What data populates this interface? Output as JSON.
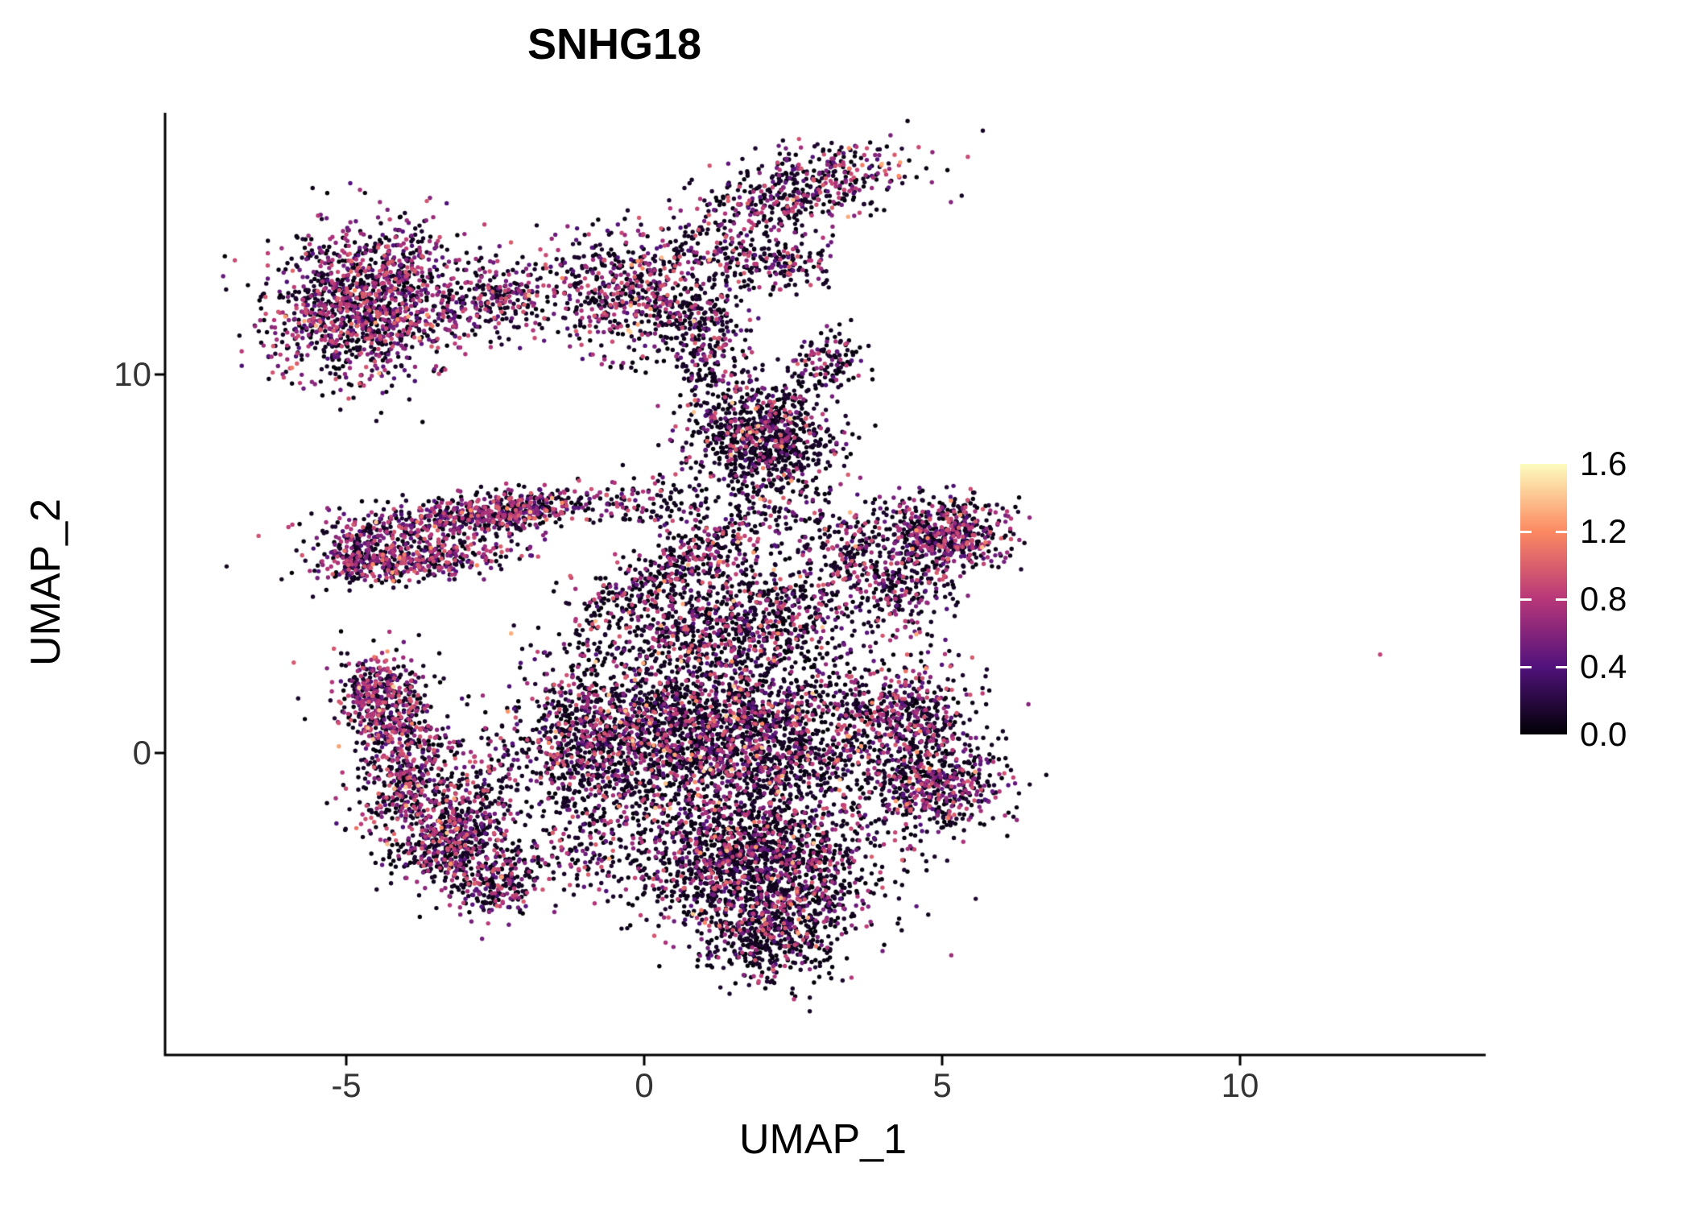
{
  "chart_data": {
    "type": "scatter",
    "title": "SNHG18",
    "xlabel": "UMAP_1",
    "ylabel": "UMAP_2",
    "xlim": [
      -8.0,
      14.1
    ],
    "ylim": [
      -8.0,
      16.9
    ],
    "grid": false,
    "legend_position": "right",
    "xticks": [
      {
        "value": -5,
        "label": "-5"
      },
      {
        "value": 0,
        "label": "0"
      },
      {
        "value": 5,
        "label": "5"
      },
      {
        "value": 10,
        "label": "10"
      }
    ],
    "yticks": [
      {
        "value": 10,
        "label": "10"
      },
      {
        "value": 0,
        "label": "0"
      }
    ],
    "colorbar": {
      "domain": [
        0.0,
        1.6
      ],
      "ticks": [
        {
          "value": 1.6,
          "label": "1.6"
        },
        {
          "value": 1.2,
          "label": "1.2"
        },
        {
          "value": 0.8,
          "label": "0.8"
        },
        {
          "value": 0.4,
          "label": "0.4"
        },
        {
          "value": 0.0,
          "label": "0.0"
        }
      ],
      "palette": "magma",
      "stops": [
        {
          "t": 0.0,
          "color": "#000004"
        },
        {
          "t": 0.25,
          "color": "#51127c"
        },
        {
          "t": 0.5,
          "color": "#b73779"
        },
        {
          "t": 0.75,
          "color": "#fc8961"
        },
        {
          "t": 1.0,
          "color": "#fcfdbf"
        }
      ]
    },
    "colors": {
      "background": "#ffffff",
      "axis": "#000000",
      "title": "#000000",
      "tick_label": "#333333"
    },
    "point_radius": 2.7,
    "seed": 42,
    "clusters": [
      {
        "name": "top-left-blob",
        "cx": -4.65,
        "cy": 11.9,
        "sx": 0.8,
        "sy": 1.0,
        "rot": -15,
        "n": 1400,
        "mid": 0.5,
        "hot": 0.02
      },
      {
        "name": "top-bridge",
        "cx": -2.45,
        "cy": 12.0,
        "sx": 0.5,
        "sy": 0.5,
        "rot": 0,
        "n": 220,
        "mid": 0.4,
        "hot": 0.01
      },
      {
        "name": "top-mid",
        "cx": -0.15,
        "cy": 12.1,
        "sx": 0.75,
        "sy": 0.85,
        "rot": 25,
        "n": 650,
        "mid": 0.4,
        "hot": 0.02
      },
      {
        "name": "top-mid-right-sparse",
        "cx": 1.3,
        "cy": 13.3,
        "sx": 0.45,
        "sy": 0.6,
        "rot": 0,
        "n": 100,
        "mid": 0.3,
        "hot": 0.0
      },
      {
        "name": "top-right-ridge",
        "cx": 2.6,
        "cy": 14.9,
        "sx": 1.0,
        "sy": 0.45,
        "rot": 25,
        "n": 480,
        "mid": 0.4,
        "hot": 0.03
      },
      {
        "name": "top-right-sub",
        "cx": 2.3,
        "cy": 13.0,
        "sx": 0.45,
        "sy": 0.35,
        "rot": 0,
        "n": 170,
        "mid": 0.35,
        "hot": 0.02
      },
      {
        "name": "upper-stream",
        "cx": 1.05,
        "cy": 10.8,
        "sx": 0.35,
        "sy": 0.9,
        "rot": 0,
        "n": 230,
        "mid": 0.3,
        "hot": 0.01
      },
      {
        "name": "dark-knot",
        "cx": 2.0,
        "cy": 8.3,
        "sx": 0.6,
        "sy": 0.75,
        "rot": 0,
        "n": 900,
        "mid": 0.22,
        "hot": 0.02
      },
      {
        "name": "knot-right-sparse",
        "cx": 3.1,
        "cy": 10.3,
        "sx": 0.3,
        "sy": 0.4,
        "rot": 0,
        "n": 120,
        "mid": 0.3,
        "hot": 0.0
      },
      {
        "name": "left-band-upper",
        "cx": -2.7,
        "cy": 6.3,
        "sx": 1.25,
        "sy": 0.28,
        "rot": 12,
        "n": 700,
        "mid": 0.45,
        "hot": 0.02
      },
      {
        "name": "left-band-lower",
        "cx": -3.9,
        "cy": 5.05,
        "sx": 0.8,
        "sy": 0.25,
        "rot": 12,
        "n": 420,
        "mid": 0.45,
        "hot": 0.02
      },
      {
        "name": "left-band-join",
        "cx": -4.75,
        "cy": 5.5,
        "sx": 0.3,
        "sy": 0.45,
        "rot": 0,
        "n": 150,
        "mid": 0.45,
        "hot": 0.01
      },
      {
        "name": "mid-sparse",
        "cx": 0.3,
        "cy": 6.6,
        "sx": 0.5,
        "sy": 0.35,
        "rot": 0,
        "n": 90,
        "mid": 0.3,
        "hot": 0.0
      },
      {
        "name": "diagonal-band",
        "cx": 0.8,
        "cy": 5.15,
        "sx": 1.15,
        "sy": 0.32,
        "rot": 40,
        "n": 450,
        "mid": 0.35,
        "hot": 0.02
      },
      {
        "name": "upper-right-scatter",
        "cx": 3.4,
        "cy": 5.4,
        "sx": 0.6,
        "sy": 0.6,
        "rot": 0,
        "n": 200,
        "mid": 0.3,
        "hot": 0.01
      },
      {
        "name": "right-cluster",
        "cx": 5.05,
        "cy": 5.8,
        "sx": 0.55,
        "sy": 0.5,
        "rot": -15,
        "n": 550,
        "mid": 0.45,
        "hot": 0.03
      },
      {
        "name": "right-cluster-tail",
        "cx": 4.3,
        "cy": 4.4,
        "sx": 0.5,
        "sy": 0.55,
        "rot": 0,
        "n": 220,
        "mid": 0.35,
        "hot": 0.01
      },
      {
        "name": "central-wedge",
        "cx": 1.4,
        "cy": 3.4,
        "sx": 1.2,
        "sy": 0.75,
        "rot": 15,
        "n": 900,
        "mid": 0.3,
        "hot": 0.015
      },
      {
        "name": "central-mass",
        "cx": 1.2,
        "cy": 0.4,
        "sx": 1.5,
        "sy": 1.2,
        "rot": 0,
        "n": 2800,
        "mid": 0.3,
        "hot": 0.02
      },
      {
        "name": "central-left",
        "cx": -1.0,
        "cy": 0.3,
        "sx": 0.5,
        "sy": 0.9,
        "rot": 0,
        "n": 400,
        "mid": 0.35,
        "hot": 0.01
      },
      {
        "name": "right-lobe-upper",
        "cx": 4.5,
        "cy": 0.9,
        "sx": 0.6,
        "sy": 0.8,
        "rot": 0,
        "n": 500,
        "mid": 0.35,
        "hot": 0.015
      },
      {
        "name": "right-lobe-lower",
        "cx": 4.9,
        "cy": -0.9,
        "sx": 0.65,
        "sy": 0.6,
        "rot": 0,
        "n": 450,
        "mid": 0.4,
        "hot": 0.02
      },
      {
        "name": "bottom-mass",
        "cx": 1.9,
        "cy": -2.9,
        "sx": 1.05,
        "sy": 0.9,
        "rot": 0,
        "n": 1600,
        "mid": 0.28,
        "hot": 0.015
      },
      {
        "name": "bottom-tail",
        "cx": 2.2,
        "cy": -4.8,
        "sx": 0.6,
        "sy": 0.65,
        "rot": 0,
        "n": 500,
        "mid": 0.28,
        "hot": 0.01
      },
      {
        "name": "crescent-tip",
        "cx": -4.45,
        "cy": 1.9,
        "sx": 0.35,
        "sy": 0.3,
        "rot": 0,
        "n": 120,
        "mid": 0.5,
        "hot": 0.02
      },
      {
        "name": "crescent-a",
        "cx": -4.3,
        "cy": 1.1,
        "sx": 0.42,
        "sy": 0.75,
        "rot": 10,
        "n": 420,
        "mid": 0.5,
        "hot": 0.02
      },
      {
        "name": "crescent-b",
        "cx": -3.95,
        "cy": -0.8,
        "sx": 0.42,
        "sy": 0.75,
        "rot": -10,
        "n": 400,
        "mid": 0.45,
        "hot": 0.02
      },
      {
        "name": "crescent-c",
        "cx": -3.25,
        "cy": -2.35,
        "sx": 0.45,
        "sy": 0.6,
        "rot": -35,
        "n": 330,
        "mid": 0.4,
        "hot": 0.02
      },
      {
        "name": "crescent-d",
        "cx": -2.55,
        "cy": -3.4,
        "sx": 0.4,
        "sy": 0.45,
        "rot": -45,
        "n": 250,
        "mid": 0.4,
        "hot": 0.01
      },
      {
        "name": "inner-arc",
        "cx": -2.9,
        "cy": -1.4,
        "sx": 0.35,
        "sy": 0.9,
        "rot": -20,
        "n": 250,
        "mid": 0.4,
        "hot": 0.01
      },
      {
        "name": "lower-left-sparse",
        "cx": -1.2,
        "cy": -2.6,
        "sx": 0.6,
        "sy": 0.7,
        "rot": 0,
        "n": 150,
        "mid": 0.35,
        "hot": 0.01
      }
    ],
    "outliers": [
      {
        "x": 12.35,
        "y": 2.6,
        "v": 0.85
      }
    ]
  }
}
